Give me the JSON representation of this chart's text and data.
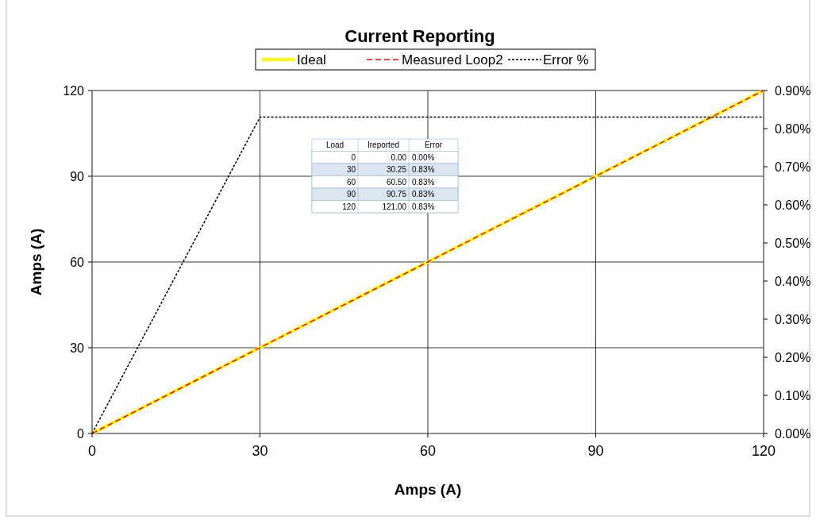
{
  "chart_data": {
    "type": "line",
    "title": "Current Reporting",
    "xlabel": "Amps (A)",
    "ylabel": "Amps (A)",
    "x": [
      0,
      30,
      60,
      90,
      120
    ],
    "xlim": [
      0,
      120
    ],
    "xticks": [
      0,
      30,
      60,
      90,
      120
    ],
    "ylim": [
      0,
      120
    ],
    "yticks": [
      0,
      30,
      60,
      90,
      120
    ],
    "y2lim": [
      0,
      0.9
    ],
    "y2ticks": [
      {
        "value": 0,
        "label": "0.00%"
      },
      {
        "value": 0.1,
        "label": "0.10%"
      },
      {
        "value": 0.2,
        "label": "0.20%"
      },
      {
        "value": 0.3,
        "label": "0.30%"
      },
      {
        "value": 0.4,
        "label": "0.40%"
      },
      {
        "value": 0.5,
        "label": "0.50%"
      },
      {
        "value": 0.6,
        "label": "0.60%"
      },
      {
        "value": 0.7,
        "label": "0.70%"
      },
      {
        "value": 0.8,
        "label": "0.80%"
      },
      {
        "value": 0.9,
        "label": "0.90%"
      }
    ],
    "grid": true,
    "legend": "top",
    "marker": "none",
    "annotations": [
      "Load",
      "Ireported",
      "Error",
      "0",
      "0.00",
      "0.00%",
      "30",
      "30.25",
      "0.83%",
      "60",
      "60.50",
      "0.83%",
      "90",
      "90.75",
      "0.83%",
      "120",
      "121.00",
      "0.83%"
    ],
    "series": [
      {
        "name": "Ideal",
        "color": "#ffff00",
        "values": [
          0,
          30,
          60,
          90,
          120
        ],
        "line_style": "solid"
      },
      {
        "name": "Measured Loop2",
        "color": "#ff0000",
        "values": [
          0,
          30,
          60,
          90,
          120
        ],
        "line_style": "dashed"
      },
      {
        "name": "Error %",
        "color": "#000000",
        "axis": "y2",
        "values": [
          0,
          0.83,
          0.83,
          0.83,
          0.83
        ],
        "line_style": "dotted"
      }
    ]
  }
}
